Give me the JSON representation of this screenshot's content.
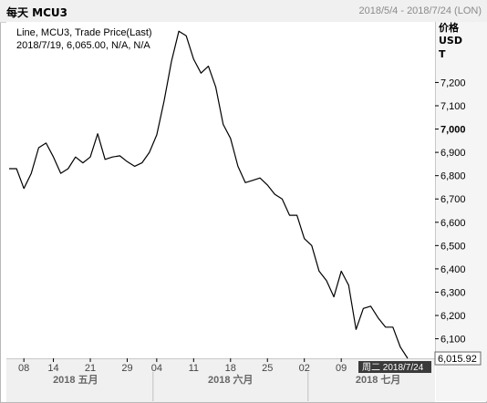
{
  "header": {
    "title": "每天 MCU3",
    "range": "2018/5/4 - 2018/7/24 (LON)"
  },
  "legend": {
    "line1": "Line, MCU3, Trade Price(Last)",
    "line2": "2018/7/19, 6,065.00, N/A, N/A"
  },
  "yaxis": {
    "unit": [
      "价格",
      "USD",
      "T"
    ],
    "last_value_label": "6,015.92"
  },
  "crosshair_label": "周二 2018/7/24",
  "colors": {
    "line": "#000000",
    "bg": "#ffffff"
  },
  "chart_data": {
    "type": "line",
    "series": [
      {
        "values": [
          6830,
          6830,
          6745,
          6810,
          6920,
          6940,
          6880,
          6810,
          6830,
          6880,
          6855,
          6880,
          6980,
          6870,
          6880,
          6885,
          6860,
          6840,
          6855,
          6900,
          6975,
          7120,
          7290,
          7420,
          7400,
          7300,
          7240,
          7270,
          7180,
          7020,
          6960,
          6840,
          6770,
          6780,
          6790,
          6760,
          6720,
          6700,
          6630,
          6630,
          6530,
          6500,
          6390,
          6350,
          6280,
          6390,
          6330,
          6140,
          6230,
          6240,
          6190,
          6150,
          6150,
          6065,
          6016
        ]
      }
    ],
    "yticks": [
      6100,
      6200,
      6300,
      6400,
      6500,
      6600,
      6700,
      6800,
      6900,
      7000,
      7100,
      7200
    ],
    "ytick_labels": [
      "6,100",
      "6,200",
      "6,300",
      "6,400",
      "6,500",
      "6,600",
      "6,700",
      "6,800",
      "6,900",
      "7,000",
      "7,100",
      "7,200"
    ],
    "ylim": [
      6020,
      7460
    ],
    "x_ticks": [
      {
        "index": 2,
        "label": "08"
      },
      {
        "index": 6,
        "label": "14"
      },
      {
        "index": 11,
        "label": "21"
      },
      {
        "index": 16,
        "label": "29"
      },
      {
        "index": 20,
        "label": "04"
      },
      {
        "index": 25,
        "label": "11"
      },
      {
        "index": 30,
        "label": "18"
      },
      {
        "index": 35,
        "label": "25"
      },
      {
        "index": 40,
        "label": "02"
      },
      {
        "index": 45,
        "label": "09"
      }
    ],
    "month_labels": [
      {
        "index": 9,
        "label": "2018 五月"
      },
      {
        "index": 30,
        "label": "2018 六月"
      },
      {
        "index": 50,
        "label": "2018 七月"
      }
    ],
    "month_separators": [
      19,
      40
    ],
    "grid": false
  }
}
